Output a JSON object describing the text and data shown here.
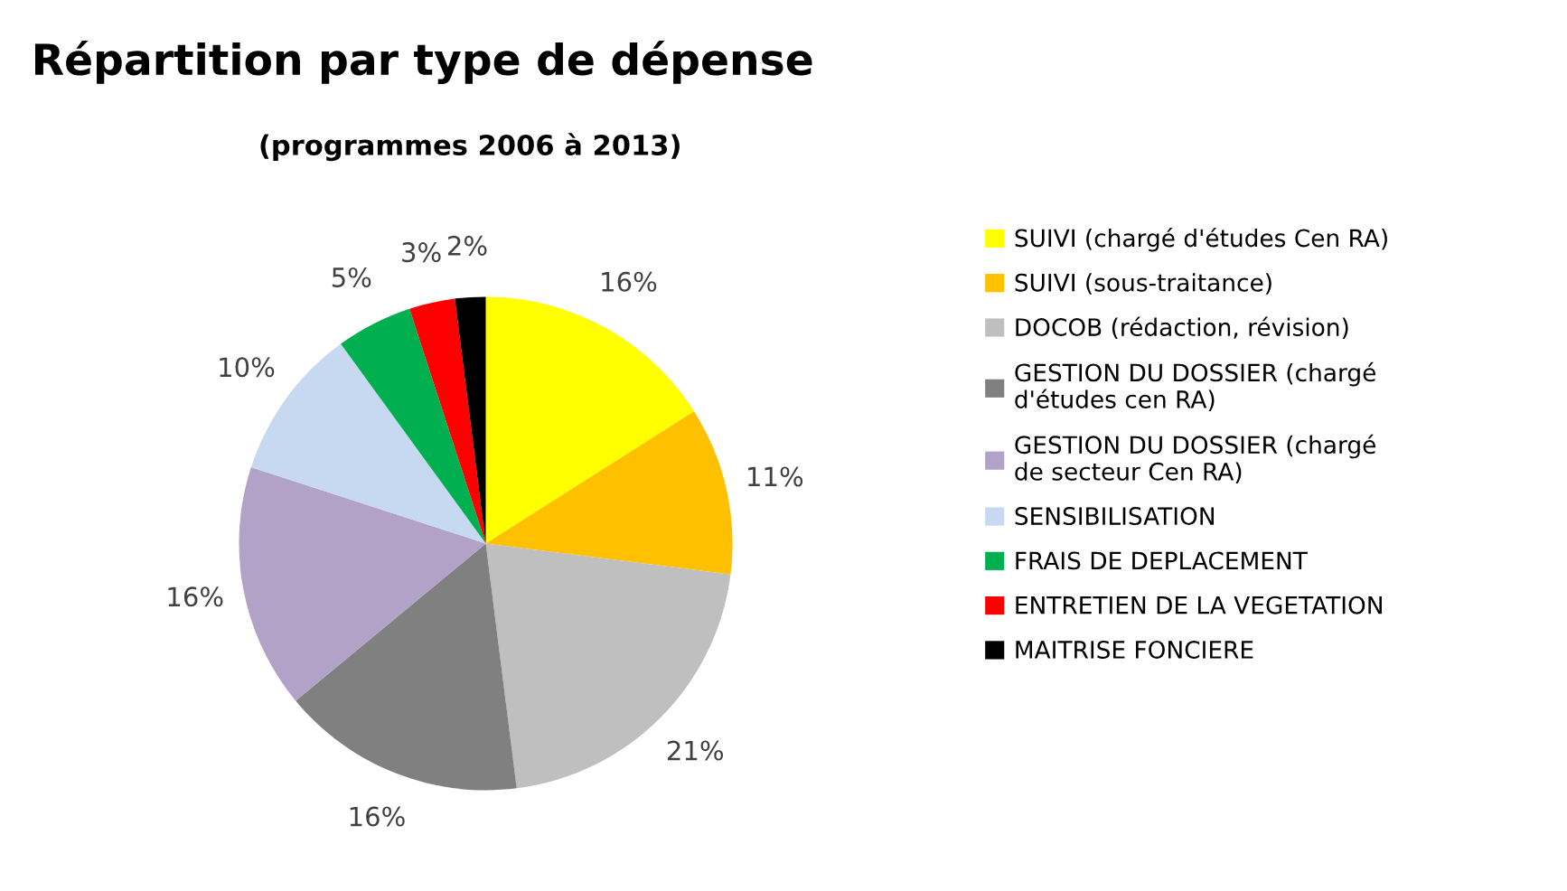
{
  "chart_data": {
    "type": "pie",
    "title": "Répartition par type de dépense",
    "subtitle": "(programmes 2006 à 2013)",
    "categories": [
      "SUIVI (chargé d'études Cen RA)",
      "SUIVI (sous-traitance)",
      "DOCOB (rédaction, révision)",
      "GESTION DU DOSSIER (chargé\nd'études cen RA)",
      "GESTION DU DOSSIER (chargé\nde secteur Cen RA)",
      "SENSIBILISATION",
      "FRAIS DE DEPLACEMENT",
      "ENTRETIEN DE LA VEGETATION",
      "MAITRISE FONCIERE"
    ],
    "values": [
      16,
      11,
      21,
      16,
      16,
      10,
      5,
      3,
      2
    ],
    "value_labels": [
      "16%",
      "11%",
      "21%",
      "16%",
      "16%",
      "10%",
      "5%",
      "3%",
      "2%"
    ],
    "colors": [
      "#ffff00",
      "#ffc000",
      "#bfbfbf",
      "#808080",
      "#b3a2c7",
      "#c6d9f1",
      "#00b050",
      "#ff0000",
      "#000000"
    ],
    "legend": "right"
  }
}
